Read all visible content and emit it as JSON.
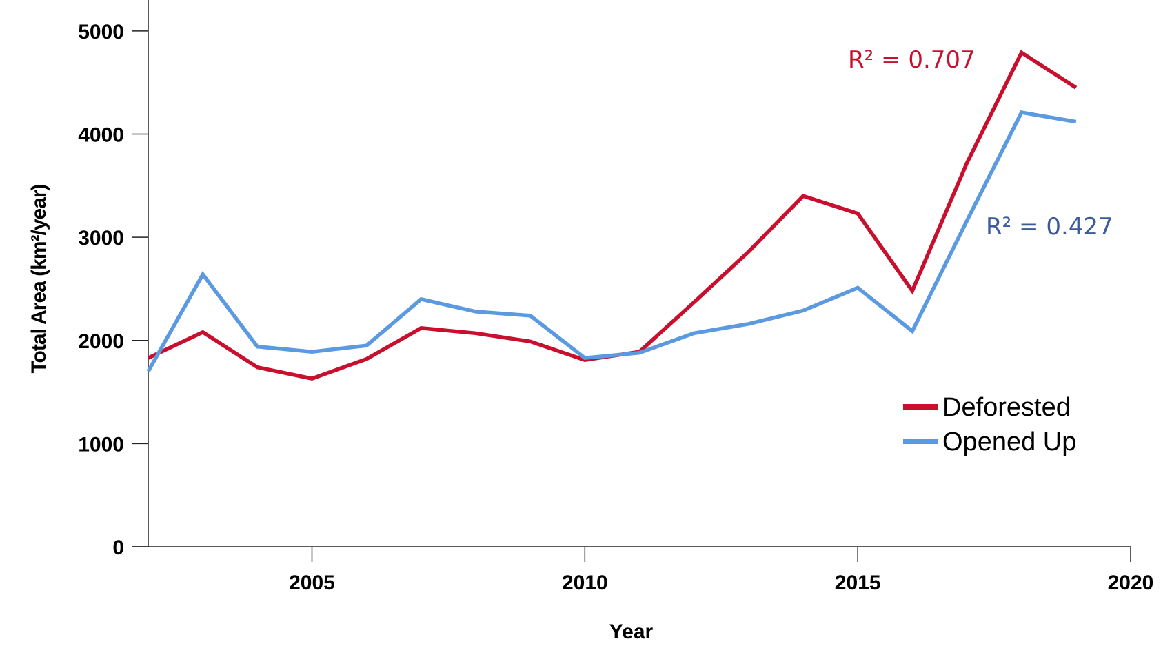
{
  "chart_data": {
    "type": "line",
    "xlabel": "Year",
    "ylabel": "Total Area (km²/year)",
    "xlim": [
      2002,
      2020
    ],
    "ylim": [
      0,
      5300
    ],
    "x_ticks": [
      "2005",
      "2010",
      "2015",
      "2020"
    ],
    "y_ticks": [
      "0",
      "1000",
      "2000",
      "3000",
      "4000",
      "5000"
    ],
    "x": [
      2002,
      2003,
      2004,
      2005,
      2006,
      2007,
      2008,
      2009,
      2010,
      2011,
      2012,
      2013,
      2014,
      2015,
      2016,
      2017,
      2018,
      2019
    ],
    "series": [
      {
        "name": "Deforested",
        "color": "#c8102e",
        "values": [
          1830,
          2080,
          1740,
          1630,
          1820,
          2120,
          2070,
          1990,
          1810,
          1890,
          2370,
          2860,
          3400,
          3230,
          2480,
          3720,
          4790,
          4450
        ]
      },
      {
        "name": "Opened Up",
        "color": "#5b9ae0",
        "values": [
          1700,
          2640,
          1940,
          1890,
          1950,
          2400,
          2280,
          2240,
          1830,
          1880,
          2070,
          2160,
          2290,
          2510,
          2090,
          3160,
          4210,
          4120
        ]
      }
    ],
    "annotations": [
      {
        "text": "R² = 0.707",
        "color": "#c8102e"
      },
      {
        "text": "R² = 0.427",
        "color": "#3a5a9a"
      }
    ],
    "legend": {
      "placement": "bottom-right"
    },
    "grid": false
  }
}
